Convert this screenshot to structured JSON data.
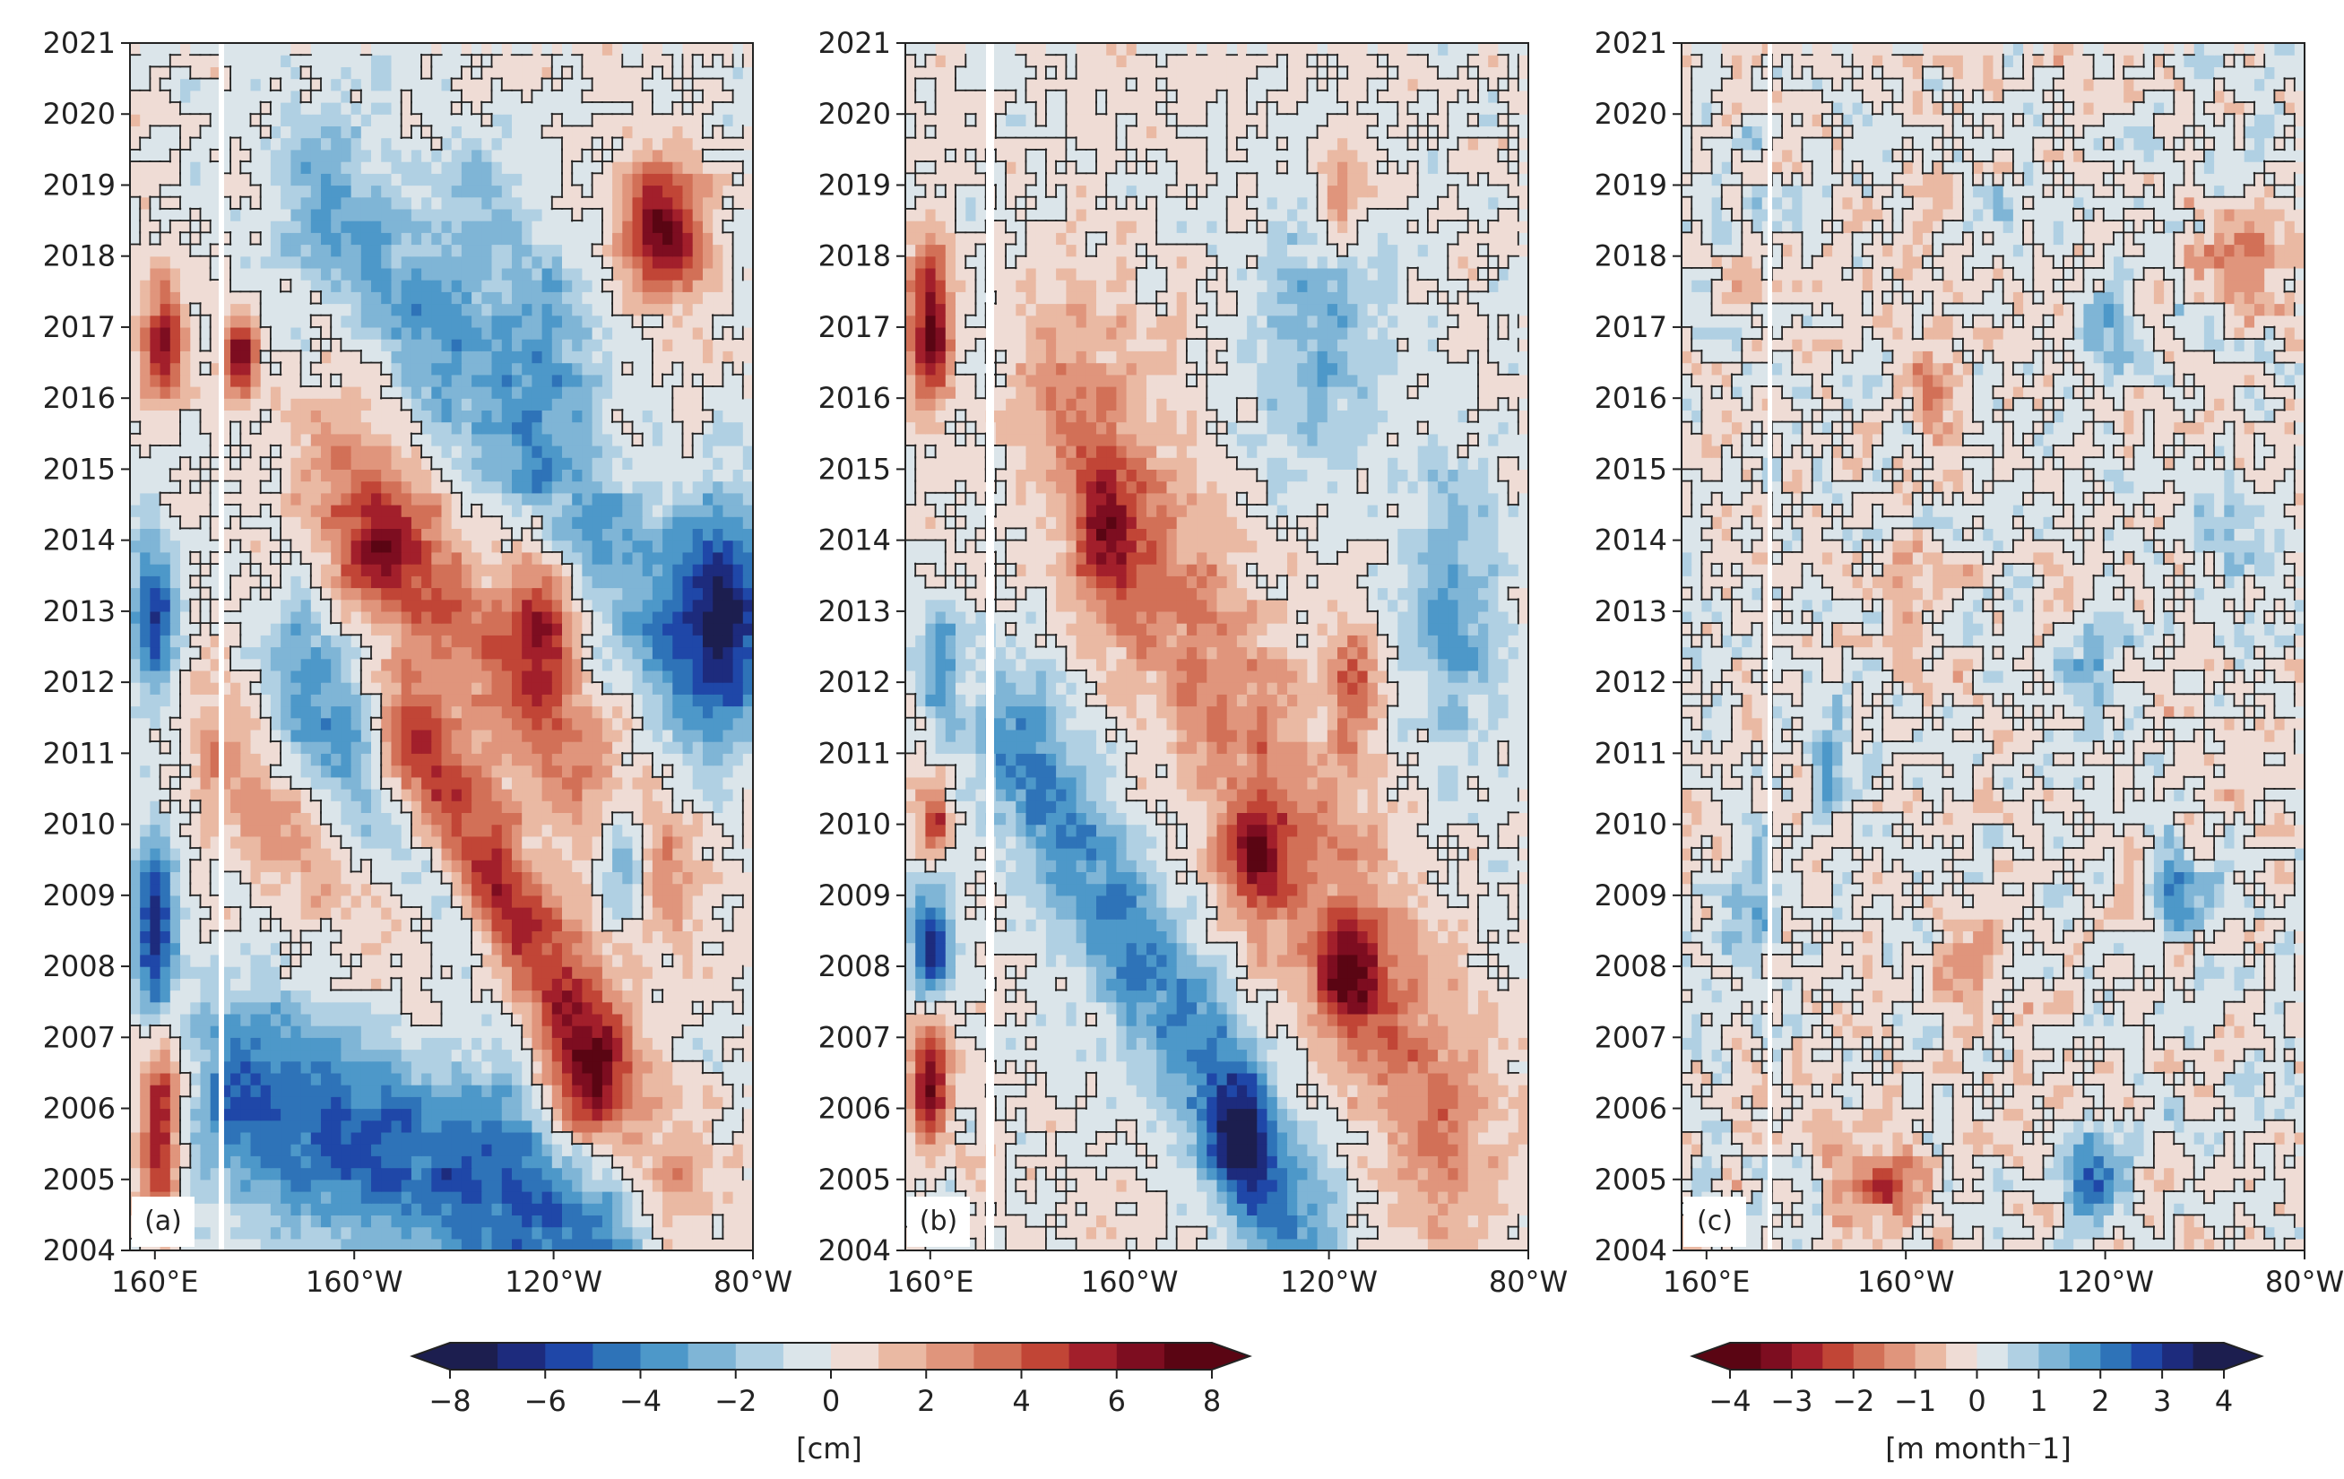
{
  "chart_data": [
    {
      "type": "heatmap",
      "panel_label": "(a)",
      "xlabel": "",
      "ylabel": "",
      "xlim": [
        155,
        280
      ],
      "ylim": [
        2004,
        2021
      ],
      "x_ticks": [
        160,
        200,
        240,
        280
      ],
      "x_tick_labels": [
        "160$^\\circ$E",
        "160$^\\circ$W",
        "120$^\\circ$W",
        "80$^\\circ$W"
      ],
      "y_ticks": [
        2004,
        2005,
        2006,
        2007,
        2008,
        2009,
        2010,
        2011,
        2012,
        2013,
        2014,
        2015,
        2016,
        2017,
        2018,
        2019,
        2020,
        2021
      ],
      "y_tick_labels": [
        "2004",
        "2005",
        "2006",
        "2007",
        "2008",
        "2009",
        "2010",
        "2011",
        "2012",
        "2013",
        "2014",
        "2015",
        "2016",
        "2017",
        "2018",
        "2019",
        "2020",
        "2021"
      ],
      "colorbar": "cm",
      "features": [
        {
          "kind": "band",
          "lon0": 178,
          "t0": 2006.2,
          "lon1": 250,
          "t1": 2004.2,
          "width": 11,
          "value": -5
        },
        {
          "kind": "band",
          "lon0": 190,
          "t0": 2011.6,
          "lon1": 232,
          "t1": 2007.2,
          "width": 10,
          "value": -4
        },
        {
          "kind": "band",
          "lon0": 198,
          "t0": 2015.0,
          "lon1": 260,
          "t1": 2009.5,
          "width": 10,
          "value": 3
        },
        {
          "kind": "band",
          "lon0": 175,
          "t0": 2011.0,
          "lon1": 262,
          "t1": 2005.0,
          "width": 9,
          "value": 3
        },
        {
          "kind": "band",
          "lon0": 212,
          "t0": 2011.0,
          "lon1": 248,
          "t1": 2006.8,
          "width": 8,
          "value": 6
        },
        {
          "kind": "band",
          "lon0": 195,
          "t0": 2018.7,
          "lon1": 270,
          "t1": 2012.2,
          "width": 11,
          "value": -3
        },
        {
          "kind": "blob",
          "lon": 238,
          "t": 2012.9,
          "rlon": 7,
          "rt": 1.1,
          "value": 5
        },
        {
          "kind": "blob",
          "lon": 205,
          "t": 2013.8,
          "rlon": 9,
          "rt": 0.9,
          "value": 4
        },
        {
          "kind": "blob",
          "lon": 262,
          "t": 2018.4,
          "rlon": 9,
          "rt": 0.9,
          "value": 7
        },
        {
          "kind": "blob",
          "lon": 274,
          "t": 2013.1,
          "rlon": 9,
          "rt": 1.5,
          "value": -6
        },
        {
          "kind": "blob",
          "lon": 254,
          "t": 2009.6,
          "rlon": 5,
          "rt": 1.0,
          "value": -5
        },
        {
          "kind": "blob",
          "lon": 177,
          "t": 2016.6,
          "rlon": 3.5,
          "rt": 0.6,
          "value": 7
        },
        {
          "kind": "blob",
          "lon": 162,
          "t": 2016.8,
          "rlon": 4,
          "rt": 0.9,
          "value": 6
        },
        {
          "kind": "blob",
          "lon": 160,
          "t": 2013.0,
          "rlon": 4,
          "rt": 1.1,
          "value": -6
        },
        {
          "kind": "blob",
          "lon": 160,
          "t": 2008.5,
          "rlon": 4,
          "rt": 1.4,
          "value": -7
        },
        {
          "kind": "blob",
          "lon": 161,
          "t": 2005.8,
          "rlon": 4,
          "rt": 1.5,
          "value": 6
        },
        {
          "kind": "blob",
          "lon": 240,
          "t": 2017.0,
          "rlon": 9,
          "rt": 1.3,
          "value": -3
        },
        {
          "kind": "blob",
          "lon": 225,
          "t": 2018.6,
          "rlon": 9,
          "rt": 1.2,
          "value": -2
        }
      ]
    },
    {
      "type": "heatmap",
      "panel_label": "(b)",
      "xlabel": "",
      "ylabel": "",
      "xlim": [
        155,
        280
      ],
      "ylim": [
        2004,
        2021
      ],
      "x_ticks": [
        160,
        200,
        240,
        280
      ],
      "x_tick_labels": [
        "160$^\\circ$E",
        "160$^\\circ$W",
        "120$^\\circ$W",
        "80$^\\circ$W"
      ],
      "y_ticks": [
        2004,
        2005,
        2006,
        2007,
        2008,
        2009,
        2010,
        2011,
        2012,
        2013,
        2014,
        2015,
        2016,
        2017,
        2018,
        2019,
        2020,
        2021
      ],
      "y_tick_labels": [
        "2004",
        "2005",
        "2006",
        "2007",
        "2008",
        "2009",
        "2010",
        "2011",
        "2012",
        "2013",
        "2014",
        "2015",
        "2016",
        "2017",
        "2018",
        "2019",
        "2020",
        "2021"
      ],
      "colorbar": "cm",
      "features": [
        {
          "kind": "band",
          "lon0": 178,
          "t0": 2011.0,
          "lon1": 232,
          "t1": 2004.6,
          "width": 10,
          "value": -4
        },
        {
          "kind": "band",
          "lon0": 190,
          "t0": 2015.5,
          "lon1": 262,
          "t1": 2006.0,
          "width": 14,
          "value": 3
        },
        {
          "kind": "blob",
          "lon": 225,
          "t": 2009.5,
          "rlon": 6,
          "rt": 0.8,
          "value": 5
        },
        {
          "kind": "blob",
          "lon": 244,
          "t": 2007.9,
          "rlon": 7,
          "rt": 0.7,
          "value": 5
        },
        {
          "kind": "blob",
          "lon": 245,
          "t": 2012.0,
          "rlon": 5,
          "rt": 0.9,
          "value": 4
        },
        {
          "kind": "blob",
          "lon": 195,
          "t": 2014.0,
          "rlon": 7,
          "rt": 0.9,
          "value": 4
        },
        {
          "kind": "blob",
          "lon": 238,
          "t": 2016.8,
          "rlon": 12,
          "rt": 1.8,
          "value": -3
        },
        {
          "kind": "blob",
          "lon": 265,
          "t": 2013.0,
          "rlon": 10,
          "rt": 2.0,
          "value": -3
        },
        {
          "kind": "blob",
          "lon": 222,
          "t": 2005.5,
          "rlon": 6,
          "rt": 0.8,
          "value": -5
        },
        {
          "kind": "blob",
          "lon": 242,
          "t": 2018.8,
          "rlon": 5,
          "rt": 0.7,
          "value": 3
        },
        {
          "kind": "blob",
          "lon": 160,
          "t": 2017.0,
          "rlon": 4,
          "rt": 1.1,
          "value": 7
        },
        {
          "kind": "blob",
          "lon": 160,
          "t": 2008.3,
          "rlon": 4,
          "rt": 0.8,
          "value": -7
        },
        {
          "kind": "blob",
          "lon": 160,
          "t": 2006.4,
          "rlon": 4,
          "rt": 0.9,
          "value": 7
        },
        {
          "kind": "blob",
          "lon": 161,
          "t": 2010.1,
          "rlon": 3,
          "rt": 0.6,
          "value": 5
        },
        {
          "kind": "blob",
          "lon": 162,
          "t": 2012.2,
          "rlon": 4,
          "rt": 0.8,
          "value": -4
        }
      ]
    },
    {
      "type": "heatmap",
      "panel_label": "(c)",
      "xlabel": "",
      "ylabel": "",
      "xlim": [
        155,
        280
      ],
      "ylim": [
        2004,
        2021
      ],
      "x_ticks": [
        160,
        200,
        240,
        280
      ],
      "x_tick_labels": [
        "160$^\\circ$E",
        "160$^\\circ$W",
        "120$^\\circ$W",
        "80$^\\circ$W"
      ],
      "y_ticks": [
        2004,
        2005,
        2006,
        2007,
        2008,
        2009,
        2010,
        2011,
        2012,
        2013,
        2014,
        2015,
        2016,
        2017,
        2018,
        2019,
        2020,
        2021
      ],
      "y_tick_labels": [
        "2004",
        "2005",
        "2006",
        "2007",
        "2008",
        "2009",
        "2010",
        "2011",
        "2012",
        "2013",
        "2014",
        "2015",
        "2016",
        "2017",
        "2018",
        "2019",
        "2020",
        "2021"
      ],
      "colorbar": "m month^-1",
      "features": [
        {
          "kind": "blob",
          "lon": 195,
          "t": 2005.0,
          "rlon": 8,
          "rt": 0.6,
          "value": -2.5
        },
        {
          "kind": "blob",
          "lon": 238,
          "t": 2005.0,
          "rlon": 6,
          "rt": 0.6,
          "value": 2.5
        },
        {
          "kind": "blob",
          "lon": 254,
          "t": 2009.0,
          "rlon": 6,
          "rt": 0.7,
          "value": 2
        },
        {
          "kind": "blob",
          "lon": 212,
          "t": 2008.0,
          "rlon": 6,
          "rt": 0.6,
          "value": -1.8
        },
        {
          "kind": "blob",
          "lon": 206,
          "t": 2016.0,
          "rlon": 6,
          "rt": 0.8,
          "value": -1.6
        },
        {
          "kind": "blob",
          "lon": 268,
          "t": 2018.0,
          "rlon": 8,
          "rt": 0.8,
          "value": -1.6
        },
        {
          "kind": "blob",
          "lon": 240,
          "t": 2017.0,
          "rlon": 6,
          "rt": 0.6,
          "value": 1.5
        },
        {
          "kind": "blob",
          "lon": 200,
          "t": 2013.0,
          "rlon": 6,
          "rt": 0.8,
          "value": -1.3
        },
        {
          "kind": "blob",
          "lon": 185,
          "t": 2011.0,
          "rlon": 3,
          "rt": 0.7,
          "value": 2
        },
        {
          "kind": "blob",
          "lon": 236,
          "t": 2012.0,
          "rlon": 6,
          "rt": 0.7,
          "value": 1.2
        },
        {
          "kind": "blob",
          "lon": 170,
          "t": 2009.0,
          "rlon": 5,
          "rt": 0.8,
          "value": 1.3
        },
        {
          "kind": "blob",
          "lon": 265,
          "t": 2014.0,
          "rlon": 6,
          "rt": 0.8,
          "value": 1.2
        }
      ]
    }
  ],
  "colorbars": [
    {
      "label": "[cm]",
      "levels": [
        -8,
        -7,
        -6,
        -5,
        -4,
        -3,
        -2,
        -1,
        0,
        1,
        2,
        3,
        4,
        5,
        6,
        7,
        8
      ],
      "ticks": [
        -8,
        -6,
        -4,
        -2,
        0,
        2,
        4,
        6,
        8
      ],
      "tick_labels": [
        "−8",
        "−6",
        "−4",
        "−2",
        "0",
        "2",
        "4",
        "6",
        "8"
      ]
    },
    {
      "label": "[m month$^-$1]",
      "levels": [
        -4,
        -3.5,
        -3,
        -2.5,
        -2,
        -1.5,
        -1,
        -0.5,
        0,
        0.5,
        1,
        1.5,
        2,
        2.5,
        3,
        3.5,
        4
      ],
      "ticks": [
        -4,
        -3,
        -2,
        -1,
        0,
        1,
        2,
        3,
        4
      ],
      "tick_labels": [
        "−4",
        "−3",
        "−2",
        "−1",
        "0",
        "1",
        "2",
        "3",
        "4"
      ]
    }
  ],
  "colors": {
    "cmap_rdbu_r": [
      "#1c1e4f",
      "#1d2b7d",
      "#1f47a8",
      "#2e73b8",
      "#4d98c9",
      "#7fb5d6",
      "#b0d0e3",
      "#dbe5ea",
      "#efdcd5",
      "#eab9a3",
      "#e0957c",
      "#d27057",
      "#c14536",
      "#a21f2b",
      "#7d0d20",
      "#5a0513"
    ],
    "cmap_rdbu": [
      "#5a0513",
      "#7d0d20",
      "#a21f2b",
      "#c14536",
      "#d27057",
      "#e0957c",
      "#eab9a3",
      "#efdcd5",
      "#dbe5ea",
      "#b0d0e3",
      "#7fb5d6",
      "#4d98c9",
      "#2e73b8",
      "#1f47a8",
      "#1d2b7d",
      "#1c1e4f"
    ]
  }
}
